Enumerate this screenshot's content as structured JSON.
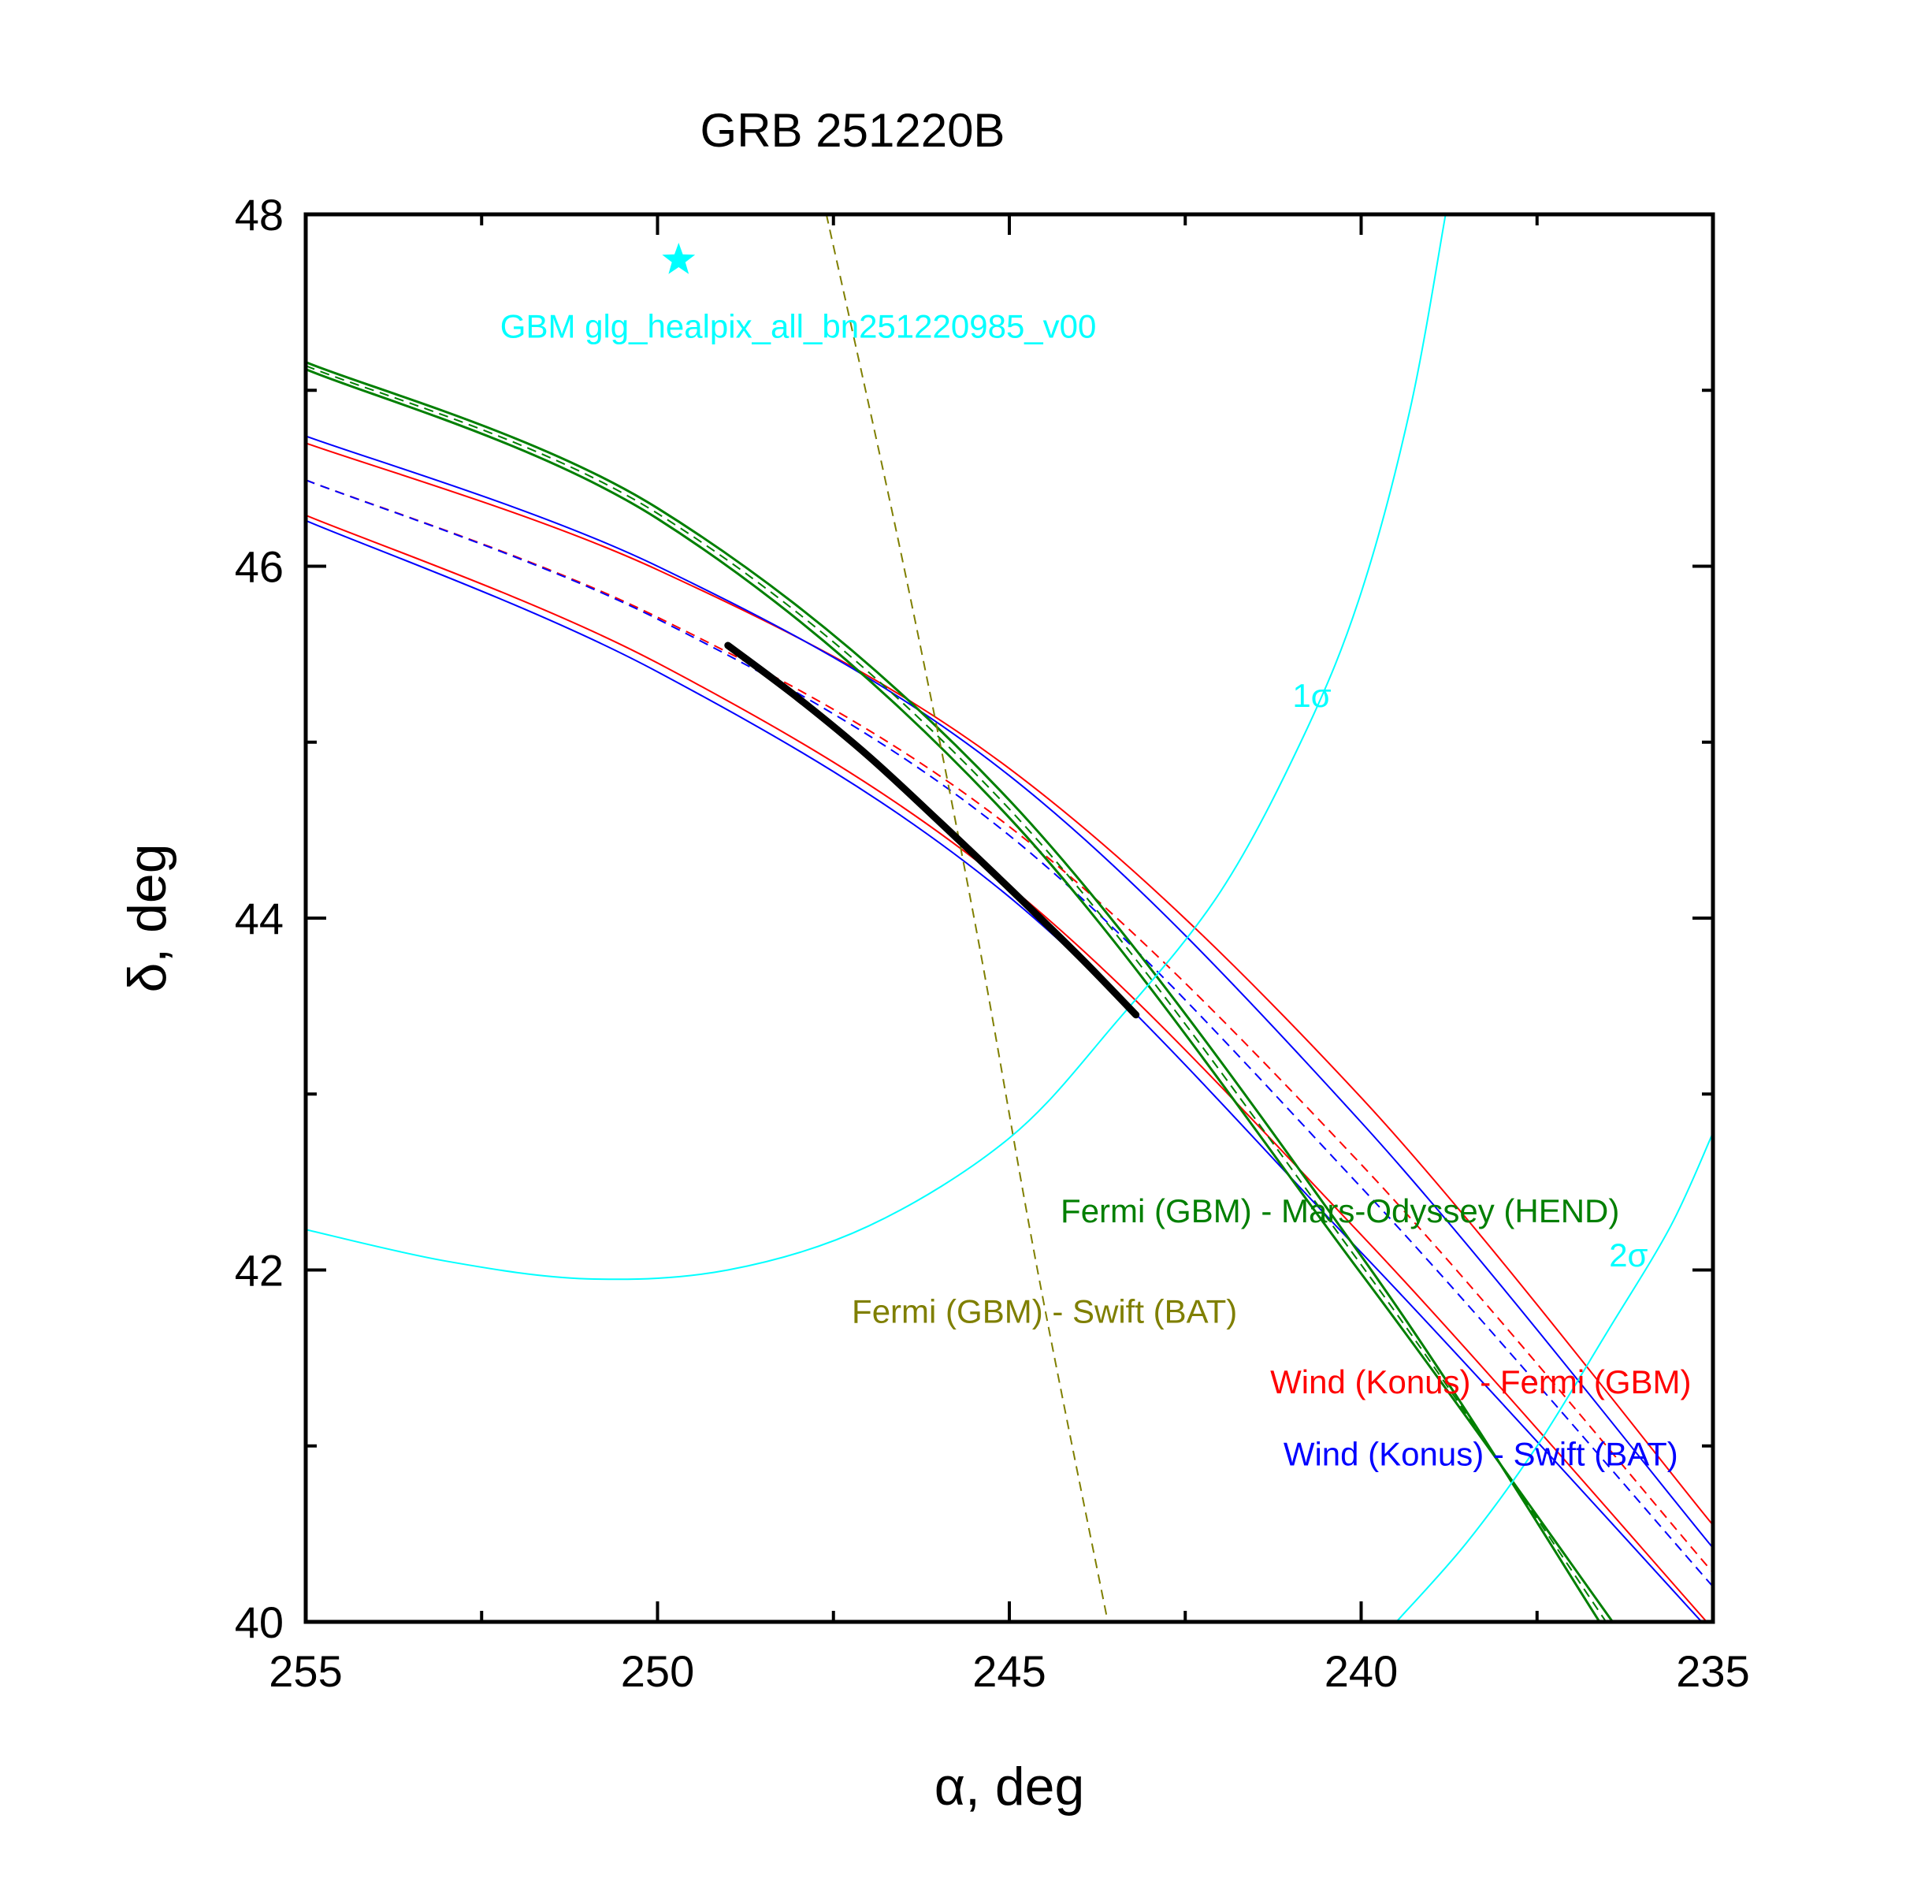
{
  "chart_data": {
    "type": "line",
    "title": "GRB 251220B",
    "xlabel": "α, deg",
    "ylabel": "δ, deg",
    "xlim": [
      255,
      235
    ],
    "ylim": [
      40,
      48
    ],
    "x_ticks": [
      255,
      250,
      245,
      240,
      235
    ],
    "x_tick_labels": [
      "255",
      "250",
      "245",
      "240",
      "235"
    ],
    "y_ticks": [
      40,
      42,
      44,
      46,
      48
    ],
    "y_tick_labels": [
      "40",
      "42",
      "44",
      "46",
      "48"
    ],
    "colors": {
      "cyan": "#00ffff",
      "green": "#007f00",
      "olive": "#7f7f00",
      "red": "#ff0000",
      "blue": "#0000ff",
      "black": "#000000"
    },
    "series": [
      {
        "name": "Wind (Konus) - Fermi (GBM) upper",
        "color": "red",
        "style": "solid",
        "width": 2,
        "points": [
          [
            255,
            46.7
          ],
          [
            250,
            45.98
          ],
          [
            245,
            44.85
          ],
          [
            240,
            42.98
          ],
          [
            235,
            40.55
          ]
        ]
      },
      {
        "name": "Wind (Konus) - Fermi (GBM) center",
        "color": "red",
        "style": "dashed",
        "width": 2,
        "points": [
          [
            255,
            46.49
          ],
          [
            250,
            45.71
          ],
          [
            245,
            44.52
          ],
          [
            240,
            42.6
          ],
          [
            235,
            40.28
          ]
        ]
      },
      {
        "name": "Wind (Konus) - Fermi (GBM) lower",
        "color": "red",
        "style": "solid",
        "width": 2,
        "points": [
          [
            255,
            46.29
          ],
          [
            250,
            45.45
          ],
          [
            245,
            44.18
          ],
          [
            240,
            42.2
          ],
          [
            235,
            39.96
          ]
        ]
      },
      {
        "name": "Wind (Konus) - Swift (BAT) upper",
        "color": "blue",
        "style": "solid",
        "width": 2,
        "points": [
          [
            255,
            46.74
          ],
          [
            250,
            46.0
          ],
          [
            245,
            44.81
          ],
          [
            240,
            42.84
          ],
          [
            235,
            40.42
          ]
        ]
      },
      {
        "name": "Wind (Konus) - Swift (BAT) center",
        "color": "blue",
        "style": "dashed",
        "width": 2,
        "points": [
          [
            255,
            46.49
          ],
          [
            250,
            45.7
          ],
          [
            245,
            44.47
          ],
          [
            240,
            42.47
          ],
          [
            235,
            40.2
          ]
        ]
      },
      {
        "name": "Wind (Konus) - Swift (BAT) lower",
        "color": "blue",
        "style": "solid",
        "width": 2,
        "points": [
          [
            255,
            46.26
          ],
          [
            250,
            45.4
          ],
          [
            245,
            44.12
          ],
          [
            240,
            42.1
          ],
          [
            235,
            39.93
          ]
        ]
      },
      {
        "name": "Fermi (GBM) - Mars-Odyssey (HEND) outer",
        "color": "green",
        "style": "solid",
        "width": 3,
        "points": [
          [
            255,
            47.16
          ],
          [
            250,
            46.33
          ],
          [
            245,
            44.67
          ],
          [
            240,
            42.08
          ],
          [
            236.5,
            39.93
          ]
        ]
      },
      {
        "name": "Fermi (GBM) - Mars-Odyssey (HEND) center",
        "color": "green",
        "style": "dashed",
        "width": 2,
        "points": [
          [
            255,
            47.14
          ],
          [
            250,
            46.3
          ],
          [
            245,
            44.62
          ],
          [
            240,
            42.03
          ],
          [
            236.4,
            39.93
          ]
        ]
      },
      {
        "name": "Fermi (GBM) - Mars-Odyssey (HEND) inner",
        "color": "green",
        "style": "solid",
        "width": 3,
        "points": [
          [
            255,
            47.12
          ],
          [
            250,
            46.27
          ],
          [
            245,
            44.57
          ],
          [
            240,
            41.98
          ],
          [
            236.3,
            39.93
          ]
        ]
      },
      {
        "name": "Fermi (GBM) - Swift (BAT)",
        "color": "olive",
        "style": "dashed",
        "width": 2,
        "points": [
          [
            247.6,
            48.0
          ],
          [
            246.5,
            46.0
          ],
          [
            245.5,
            44.0
          ],
          [
            244.6,
            42.0
          ],
          [
            243.6,
            40.0
          ]
        ]
      },
      {
        "name": "1σ contour",
        "color": "cyan",
        "style": "solid",
        "width": 2,
        "points": [
          [
            255,
            42.23
          ],
          [
            253,
            42.05
          ],
          [
            251,
            41.95
          ],
          [
            249,
            42.0
          ],
          [
            247,
            42.25
          ],
          [
            245,
            42.75
          ],
          [
            243.5,
            43.4
          ],
          [
            242,
            44.15
          ],
          [
            240.8,
            45.05
          ],
          [
            240,
            45.85
          ],
          [
            239.3,
            46.9
          ],
          [
            238.8,
            48.0
          ]
        ]
      },
      {
        "name": "2σ contour",
        "color": "cyan",
        "style": "solid",
        "width": 2,
        "points": [
          [
            239.5,
            40.0
          ],
          [
            238.5,
            40.45
          ],
          [
            237.5,
            41.0
          ],
          [
            236.5,
            41.65
          ],
          [
            235.6,
            42.25
          ],
          [
            235,
            42.78
          ]
        ]
      },
      {
        "name": "Localization arc",
        "color": "black",
        "style": "solid",
        "width": 9,
        "points": [
          [
            249.0,
            45.55
          ],
          [
            248,
            45.25
          ],
          [
            247,
            44.92
          ],
          [
            246,
            44.55
          ],
          [
            245,
            44.17
          ],
          [
            244,
            43.78
          ],
          [
            243.2,
            43.45
          ]
        ]
      }
    ],
    "markers": [
      {
        "name": "GBM position",
        "shape": "star",
        "color": "cyan",
        "x": 249.7,
        "y": 47.74
      }
    ],
    "annotations": [
      {
        "text": "GBM glg_healpix_all_bn251220985_v00",
        "color": "cyan",
        "x": 248.0,
        "y": 47.3
      },
      {
        "text": "1σ",
        "color": "cyan",
        "x": 240.7,
        "y": 45.2
      },
      {
        "text": "2σ",
        "color": "cyan",
        "x": 236.2,
        "y": 42.02
      },
      {
        "text": "Fermi (GBM) - Mars-Odyssey (HEND)",
        "color": "green",
        "x": 240.3,
        "y": 42.27
      },
      {
        "text": "Fermi (GBM) - Swift (BAT)",
        "color": "olive",
        "x": 244.5,
        "y": 41.7
      },
      {
        "text": "Wind (Konus) - Fermi (GBM)",
        "color": "red",
        "x": 238.3,
        "y": 41.3
      },
      {
        "text": "Wind (Konus) - Swift (BAT)",
        "color": "blue",
        "x": 238.3,
        "y": 40.89
      }
    ]
  }
}
